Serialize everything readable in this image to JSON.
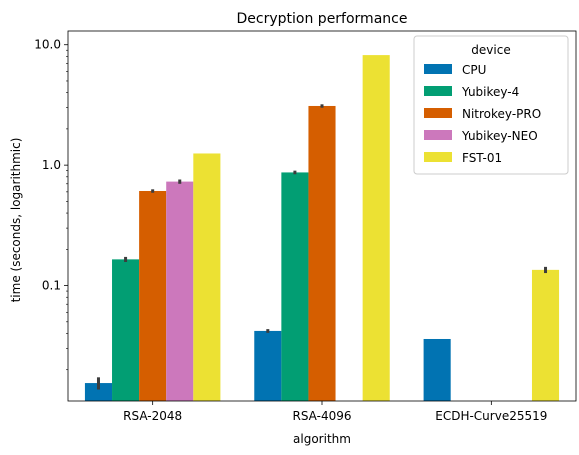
{
  "chart_data": {
    "type": "bar",
    "title": "Decryption performance",
    "xlabel": "algorithm",
    "ylabel": "time (seconds, logarithmic)",
    "y_scale": "log",
    "ylim": [
      0.011,
      13
    ],
    "y_ticks": [
      {
        "value": 0.1,
        "label": "0.1"
      },
      {
        "value": 1.0,
        "label": "1.0"
      },
      {
        "value": 10.0,
        "label": "10.0"
      }
    ],
    "categories": [
      "RSA-2048",
      "RSA-4096",
      "ECDH-Curve25519"
    ],
    "legend": {
      "title": "device",
      "placement": "top-right"
    },
    "series": [
      {
        "name": "CPU",
        "color": "#0173b2",
        "values": [
          0.0155,
          0.042,
          0.036
        ],
        "err": [
          0.0018,
          0.0015,
          0
        ]
      },
      {
        "name": "Yubikey-4",
        "color": "#029e73",
        "values": [
          0.165,
          0.87,
          null
        ],
        "err": [
          0.008,
          0.03,
          null
        ]
      },
      {
        "name": "Nitrokey-PRO",
        "color": "#d55e00",
        "values": [
          0.61,
          3.1,
          null
        ],
        "err": [
          0.02,
          0.1,
          null
        ]
      },
      {
        "name": "Yubikey-NEO",
        "color": "#cc78bc",
        "values": [
          0.73,
          null,
          null
        ],
        "err": [
          0.03,
          null,
          null
        ]
      },
      {
        "name": "FST-01",
        "color": "#ece133",
        "values": [
          1.25,
          8.2,
          0.135
        ],
        "err": [
          0,
          0,
          0.008
        ]
      }
    ],
    "grid": false
  }
}
